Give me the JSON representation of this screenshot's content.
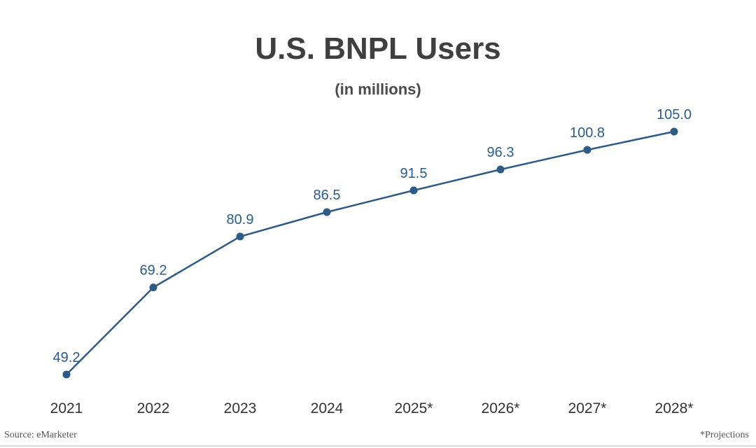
{
  "chart_data": {
    "type": "line",
    "title": "U.S. BNPL Users",
    "subtitle": "(in millions)",
    "categories": [
      "2021",
      "2022",
      "2023",
      "2024",
      "2025*",
      "2026*",
      "2027*",
      "2028*"
    ],
    "series": [
      {
        "values": [
          49.2,
          69.2,
          80.9,
          86.5,
          91.5,
          96.3,
          100.8,
          105.0
        ],
        "labels": [
          "49.2",
          "69.2",
          "80.9",
          "86.5",
          "91.5",
          "96.3",
          "100.8",
          "105.0"
        ],
        "color": "#2e5a86"
      }
    ],
    "xlabel": "",
    "ylabel": "",
    "grid": false,
    "label_color": "#2b5c8a",
    "tick_color": "#333333"
  },
  "footer": {
    "source": "Source: eMarketer",
    "note": "*Projections"
  }
}
